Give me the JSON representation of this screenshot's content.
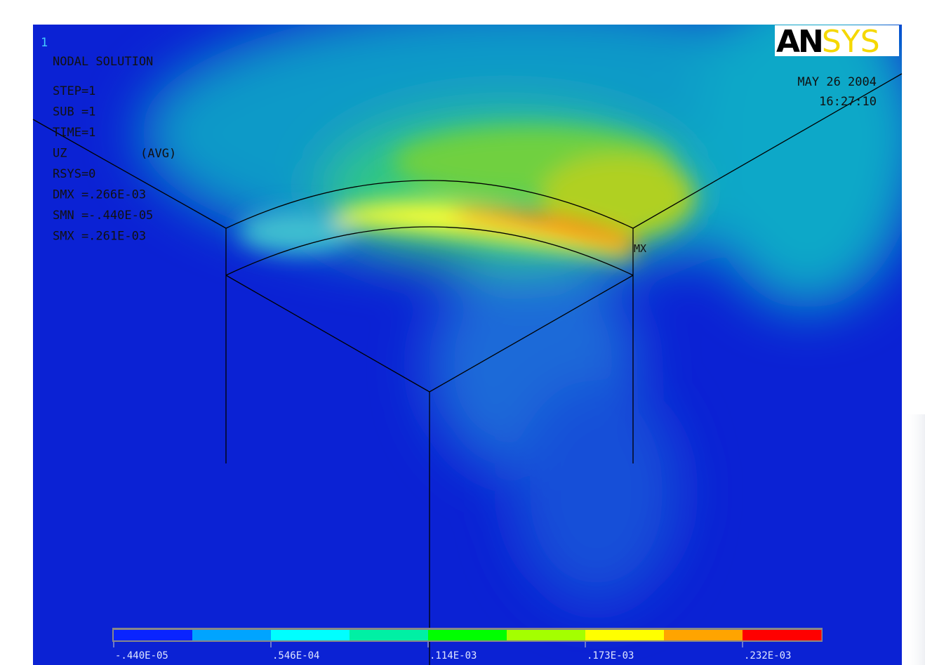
{
  "window_number": "1",
  "info": {
    "title": "NODAL SOLUTION",
    "lines": [
      "STEP=1",
      "SUB =1",
      "TIME=1",
      "UZ",
      "RSYS=0",
      "DMX =.266E-03",
      "SMN =-.440E-05",
      "SMX =.261E-03"
    ],
    "avg": "(AVG)"
  },
  "logo": {
    "dark": "AN",
    "light": "SYS"
  },
  "date": "MAY 26 2004",
  "time": "16:27:10",
  "max_marker": "MX",
  "legend": {
    "colors": [
      "#0a24ff",
      "#00a4ff",
      "#00ffff",
      "#00f0a4",
      "#00ff00",
      "#a4ff00",
      "#ffff00",
      "#ffa400",
      "#ff0000"
    ],
    "labels": [
      "-.440E-05",
      ".546E-04",
      ".114E-03",
      ".173E-03",
      ".232E-03"
    ]
  }
}
